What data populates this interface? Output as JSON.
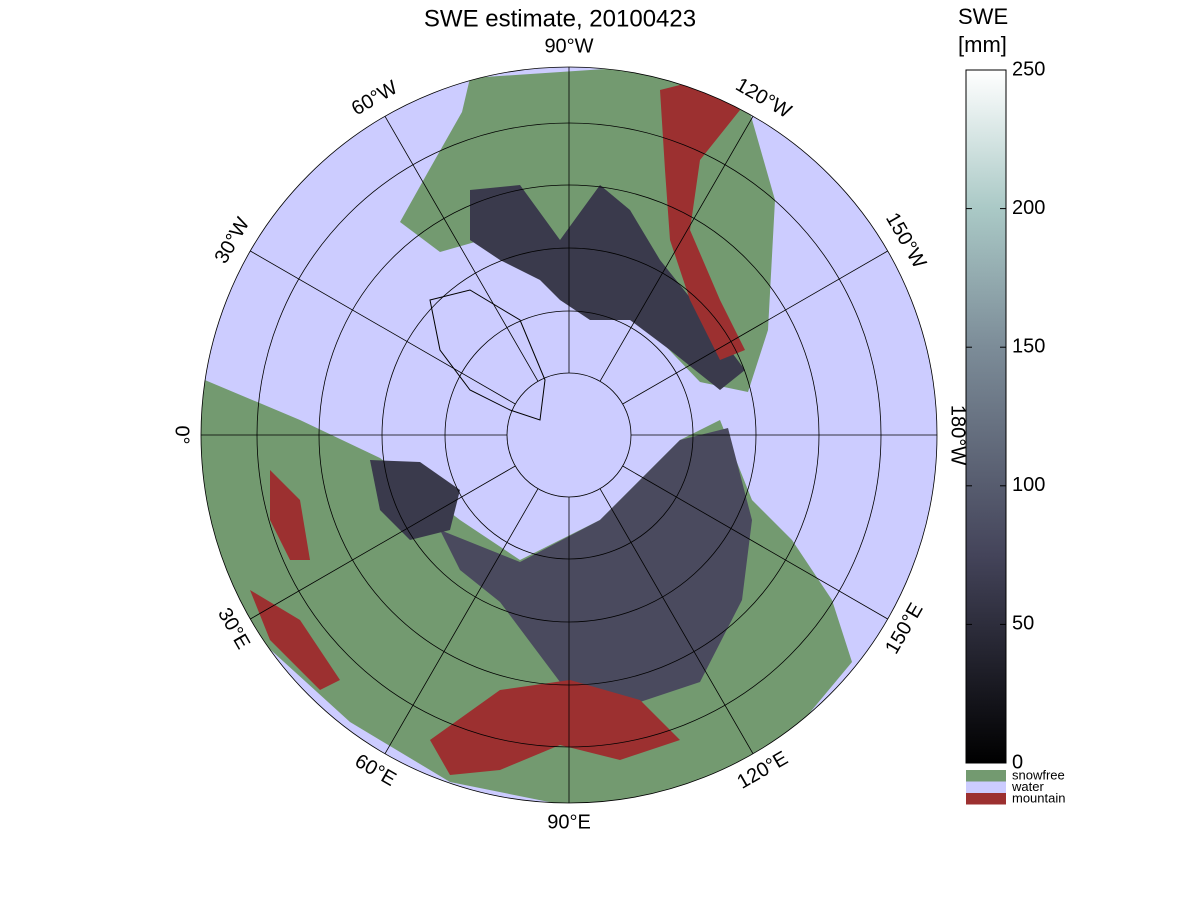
{
  "title": "SWE estimate, 20100423",
  "lon_labels": [
    "90°W",
    "120°W",
    "150°W",
    "180°W",
    "150°E",
    "120°E",
    "90°E",
    "60°E",
    "30°E",
    "0°",
    "30°W",
    "60°W"
  ],
  "colorbar": {
    "label": [
      "SWE",
      "[mm]"
    ],
    "lim": [
      0,
      250
    ],
    "ticks": [
      0,
      50,
      100,
      150,
      200,
      250
    ]
  },
  "legend": [
    {
      "name": "snowfree",
      "color": "#739a70"
    },
    {
      "name": "water",
      "color": "#ccccff"
    },
    {
      "name": "mountain",
      "color": "#9c3030"
    }
  ]
}
